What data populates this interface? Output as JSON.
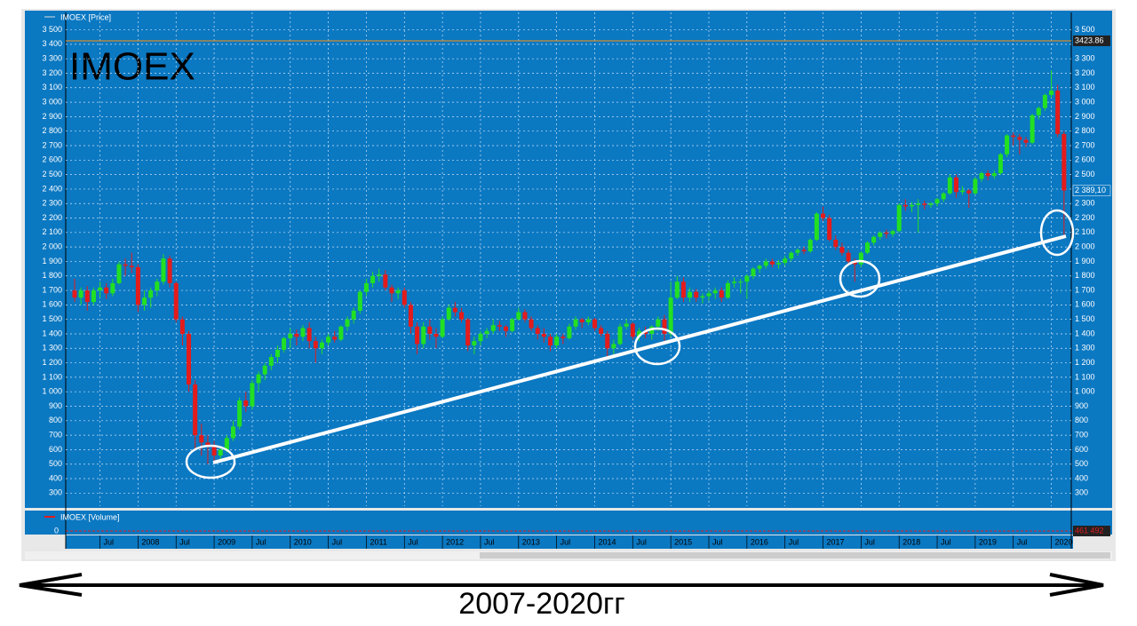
{
  "chart_data": {
    "type": "candlestick",
    "annotations": [
      "IMOEX",
      "2007-2020гг"
    ],
    "ylim": [
      210,
      3620
    ],
    "yticks": [
      300,
      400,
      500,
      600,
      700,
      800,
      900,
      {
        "value": 1000,
        "label": "1 000"
      },
      {
        "value": 1100,
        "label": "1 100"
      },
      {
        "value": 1200,
        "label": "1 200"
      },
      {
        "value": 1300,
        "label": "1 300"
      },
      {
        "value": 1400,
        "label": "1 400"
      },
      {
        "value": 1500,
        "label": "1 500"
      },
      {
        "value": 1600,
        "label": "1 600"
      },
      {
        "value": 1700,
        "label": "1 700"
      },
      {
        "value": 1800,
        "label": "1 800"
      },
      {
        "value": 1900,
        "label": "1 900"
      },
      {
        "value": 2000,
        "label": "2 000"
      },
      {
        "value": 2100,
        "label": "2 100"
      },
      {
        "value": 2200,
        "label": "2 200"
      },
      {
        "value": 2300,
        "label": "2 300"
      },
      {
        "value": 2400,
        "label": "2 400"
      },
      {
        "value": 2500,
        "label": "2 500"
      },
      {
        "value": 2600,
        "label": "2 600"
      },
      {
        "value": 2700,
        "label": "2 700"
      },
      {
        "value": 2800,
        "label": "2 800"
      },
      {
        "value": 2900,
        "label": "2 900"
      },
      {
        "value": 3000,
        "label": "3 000"
      },
      {
        "value": 3100,
        "label": "3 100"
      },
      {
        "value": 3200,
        "label": "3 200"
      },
      {
        "value": 3300,
        "label": "3 300"
      },
      {
        "value": 3400,
        "label": "3 400"
      },
      {
        "value": 3500,
        "label": "3 500"
      }
    ],
    "xticks": [
      {
        "value": 4,
        "label": "Jul"
      },
      {
        "value": 10,
        "label": "2008"
      },
      {
        "value": 16,
        "label": "Jul"
      },
      {
        "value": 22,
        "label": "2009"
      },
      {
        "value": 28,
        "label": "Jul"
      },
      {
        "value": 34,
        "label": "2010"
      },
      {
        "value": 40,
        "label": "Jul"
      },
      {
        "value": 46,
        "label": "2011"
      },
      {
        "value": 52,
        "label": "Jul"
      },
      {
        "value": 58,
        "label": "2012"
      },
      {
        "value": 64,
        "label": "Jul"
      },
      {
        "value": 70,
        "label": "2013"
      },
      {
        "value": 76,
        "label": "Jul"
      },
      {
        "value": 82,
        "label": "2014"
      },
      {
        "value": 88,
        "label": "Jul"
      },
      {
        "value": 94,
        "label": "2015"
      },
      {
        "value": 100,
        "label": "Jul"
      },
      {
        "value": 106,
        "label": "2016"
      },
      {
        "value": 112,
        "label": "Jul"
      },
      {
        "value": 118,
        "label": "2017"
      },
      {
        "value": 124,
        "label": "Jul"
      },
      {
        "value": 130,
        "label": "2018"
      },
      {
        "value": 136,
        "label": "Jul"
      },
      {
        "value": 142,
        "label": "2019"
      },
      {
        "value": 148,
        "label": "Jul"
      },
      {
        "value": 154,
        "label": "2020"
      }
    ],
    "grid": true,
    "level": {
      "value": 3423.86,
      "label": "3423.86"
    },
    "last_price": {
      "value": 2389.1,
      "label": "2 389,10"
    },
    "series": [
      {
        "name": "IMOEX [Price]",
        "up_color": "#22e022",
        "down_color": "#e41b1b",
        "candles": [
          [
            1700,
            1780,
            1620,
            1650
          ],
          [
            1650,
            1720,
            1600,
            1700
          ],
          [
            1700,
            1730,
            1560,
            1620
          ],
          [
            1620,
            1720,
            1600,
            1700
          ],
          [
            1700,
            1760,
            1650,
            1720
          ],
          [
            1720,
            1750,
            1640,
            1680
          ],
          [
            1680,
            1780,
            1660,
            1750
          ],
          [
            1750,
            1900,
            1740,
            1880
          ],
          [
            1880,
            1920,
            1800,
            1870
          ],
          [
            1870,
            1960,
            1820,
            1860
          ],
          [
            1860,
            1880,
            1550,
            1600
          ],
          [
            1600,
            1700,
            1560,
            1650
          ],
          [
            1650,
            1720,
            1580,
            1700
          ],
          [
            1700,
            1780,
            1660,
            1760
          ],
          [
            1760,
            1950,
            1740,
            1920
          ],
          [
            1920,
            1940,
            1720,
            1750
          ],
          [
            1750,
            1760,
            1480,
            1500
          ],
          [
            1500,
            1520,
            1320,
            1400
          ],
          [
            1400,
            1420,
            1000,
            1050
          ],
          [
            1050,
            1080,
            600,
            700
          ],
          [
            700,
            780,
            560,
            650
          ],
          [
            650,
            700,
            500,
            620
          ],
          [
            620,
            660,
            500,
            560
          ],
          [
            560,
            620,
            520,
            600
          ],
          [
            600,
            700,
            580,
            680
          ],
          [
            680,
            800,
            660,
            760
          ],
          [
            760,
            960,
            740,
            940
          ],
          [
            940,
            1000,
            860,
            900
          ],
          [
            900,
            1080,
            880,
            1060
          ],
          [
            1060,
            1140,
            1000,
            1120
          ],
          [
            1120,
            1200,
            1080,
            1180
          ],
          [
            1180,
            1260,
            1150,
            1240
          ],
          [
            1240,
            1320,
            1200,
            1290
          ],
          [
            1290,
            1380,
            1270,
            1370
          ],
          [
            1370,
            1440,
            1300,
            1400
          ],
          [
            1400,
            1430,
            1320,
            1380
          ],
          [
            1380,
            1460,
            1350,
            1440
          ],
          [
            1440,
            1480,
            1300,
            1350
          ],
          [
            1350,
            1380,
            1200,
            1300
          ],
          [
            1300,
            1360,
            1260,
            1340
          ],
          [
            1340,
            1400,
            1320,
            1380
          ],
          [
            1380,
            1420,
            1340,
            1360
          ],
          [
            1360,
            1460,
            1350,
            1450
          ],
          [
            1450,
            1520,
            1420,
            1500
          ],
          [
            1500,
            1580,
            1470,
            1560
          ],
          [
            1560,
            1700,
            1540,
            1690
          ],
          [
            1690,
            1780,
            1660,
            1750
          ],
          [
            1750,
            1830,
            1720,
            1800
          ],
          [
            1800,
            1850,
            1760,
            1810
          ],
          [
            1810,
            1840,
            1700,
            1720
          ],
          [
            1720,
            1740,
            1620,
            1680
          ],
          [
            1680,
            1720,
            1640,
            1700
          ],
          [
            1700,
            1720,
            1580,
            1600
          ],
          [
            1600,
            1620,
            1400,
            1450
          ],
          [
            1450,
            1480,
            1260,
            1330
          ],
          [
            1330,
            1480,
            1300,
            1450
          ],
          [
            1450,
            1500,
            1360,
            1400
          ],
          [
            1400,
            1440,
            1300,
            1380
          ],
          [
            1380,
            1520,
            1370,
            1500
          ],
          [
            1500,
            1600,
            1490,
            1580
          ],
          [
            1580,
            1620,
            1520,
            1550
          ],
          [
            1550,
            1580,
            1480,
            1500
          ],
          [
            1500,
            1510,
            1280,
            1320
          ],
          [
            1320,
            1380,
            1260,
            1350
          ],
          [
            1350,
            1420,
            1320,
            1400
          ],
          [
            1400,
            1440,
            1370,
            1420
          ],
          [
            1420,
            1500,
            1400,
            1460
          ],
          [
            1460,
            1490,
            1420,
            1450
          ],
          [
            1450,
            1460,
            1380,
            1420
          ],
          [
            1420,
            1510,
            1410,
            1500
          ],
          [
            1500,
            1580,
            1490,
            1550
          ],
          [
            1550,
            1570,
            1480,
            1500
          ],
          [
            1500,
            1520,
            1420,
            1440
          ],
          [
            1440,
            1460,
            1360,
            1400
          ],
          [
            1400,
            1440,
            1340,
            1380
          ],
          [
            1380,
            1400,
            1280,
            1320
          ],
          [
            1320,
            1400,
            1300,
            1380
          ],
          [
            1380,
            1400,
            1330,
            1370
          ],
          [
            1370,
            1470,
            1360,
            1450
          ],
          [
            1450,
            1520,
            1430,
            1500
          ],
          [
            1500,
            1510,
            1440,
            1480
          ],
          [
            1480,
            1520,
            1460,
            1500
          ],
          [
            1500,
            1510,
            1420,
            1440
          ],
          [
            1440,
            1460,
            1380,
            1400
          ],
          [
            1400,
            1420,
            1230,
            1300
          ],
          [
            1300,
            1360,
            1260,
            1330
          ],
          [
            1330,
            1470,
            1320,
            1450
          ],
          [
            1450,
            1500,
            1430,
            1470
          ],
          [
            1470,
            1480,
            1360,
            1380
          ],
          [
            1380,
            1440,
            1350,
            1420
          ],
          [
            1420,
            1450,
            1370,
            1400
          ],
          [
            1400,
            1460,
            1360,
            1450
          ],
          [
            1450,
            1520,
            1420,
            1500
          ],
          [
            1500,
            1530,
            1340,
            1400
          ],
          [
            1400,
            1760,
            1380,
            1650
          ],
          [
            1650,
            1800,
            1640,
            1760
          ],
          [
            1760,
            1790,
            1620,
            1650
          ],
          [
            1650,
            1720,
            1620,
            1690
          ],
          [
            1690,
            1710,
            1620,
            1650
          ],
          [
            1650,
            1680,
            1610,
            1660
          ],
          [
            1660,
            1700,
            1630,
            1680
          ],
          [
            1680,
            1720,
            1640,
            1700
          ],
          [
            1700,
            1720,
            1620,
            1650
          ],
          [
            1650,
            1770,
            1640,
            1750
          ],
          [
            1750,
            1790,
            1720,
            1760
          ],
          [
            1760,
            1780,
            1680,
            1760
          ],
          [
            1760,
            1810,
            1640,
            1800
          ],
          [
            1800,
            1860,
            1780,
            1850
          ],
          [
            1850,
            1880,
            1820,
            1870
          ],
          [
            1870,
            1920,
            1850,
            1900
          ],
          [
            1900,
            1920,
            1860,
            1880
          ],
          [
            1880,
            1910,
            1850,
            1890
          ],
          [
            1890,
            1940,
            1870,
            1920
          ],
          [
            1920,
            1970,
            1900,
            1960
          ],
          [
            1960,
            1990,
            1940,
            1980
          ],
          [
            1980,
            2000,
            1950,
            1970
          ],
          [
            1970,
            2060,
            1960,
            2050
          ],
          [
            2050,
            2240,
            2040,
            2230
          ],
          [
            2230,
            2280,
            2180,
            2200
          ],
          [
            2200,
            2220,
            2040,
            2050
          ],
          [
            2050,
            2080,
            1980,
            2000
          ],
          [
            2000,
            2030,
            1940,
            1960
          ],
          [
            1960,
            1980,
            1880,
            1900
          ],
          [
            1900,
            1920,
            1760,
            1880
          ],
          [
            1880,
            1970,
            1860,
            1960
          ],
          [
            1960,
            2040,
            1950,
            2030
          ],
          [
            2030,
            2080,
            2010,
            2070
          ],
          [
            2070,
            2110,
            2050,
            2100
          ],
          [
            2100,
            2120,
            2060,
            2090
          ],
          [
            2090,
            2120,
            2070,
            2110
          ],
          [
            2110,
            2300,
            2100,
            2290
          ],
          [
            2290,
            2330,
            2250,
            2280
          ],
          [
            2280,
            2310,
            2240,
            2290
          ],
          [
            2290,
            2330,
            2100,
            2300
          ],
          [
            2300,
            2320,
            2260,
            2290
          ],
          [
            2290,
            2310,
            2270,
            2300
          ],
          [
            2300,
            2340,
            2280,
            2330
          ],
          [
            2330,
            2380,
            2310,
            2370
          ],
          [
            2370,
            2500,
            2360,
            2480
          ],
          [
            2480,
            2500,
            2340,
            2380
          ],
          [
            2380,
            2420,
            2360,
            2390
          ],
          [
            2390,
            2400,
            2270,
            2370
          ],
          [
            2370,
            2480,
            2360,
            2470
          ],
          [
            2470,
            2520,
            2450,
            2510
          ],
          [
            2510,
            2530,
            2460,
            2490
          ],
          [
            2490,
            2530,
            2470,
            2510
          ],
          [
            2510,
            2650,
            2500,
            2640
          ],
          [
            2640,
            2780,
            2620,
            2770
          ],
          [
            2770,
            2790,
            2700,
            2760
          ],
          [
            2760,
            2780,
            2640,
            2740
          ],
          [
            2740,
            2760,
            2690,
            2720
          ],
          [
            2720,
            2920,
            2710,
            2910
          ],
          [
            2910,
            2970,
            2880,
            2960
          ],
          [
            2960,
            3060,
            2940,
            3050
          ],
          [
            3050,
            3220,
            3030,
            3080
          ],
          [
            3080,
            3120,
            2760,
            2780
          ],
          [
            2780,
            2800,
            2080,
            2390
          ]
        ]
      }
    ],
    "volume": {
      "name": "IMOEX [Volume]",
      "yticks": [
        0
      ],
      "last": {
        "value": 461492,
        "label": "461 492"
      }
    }
  }
}
